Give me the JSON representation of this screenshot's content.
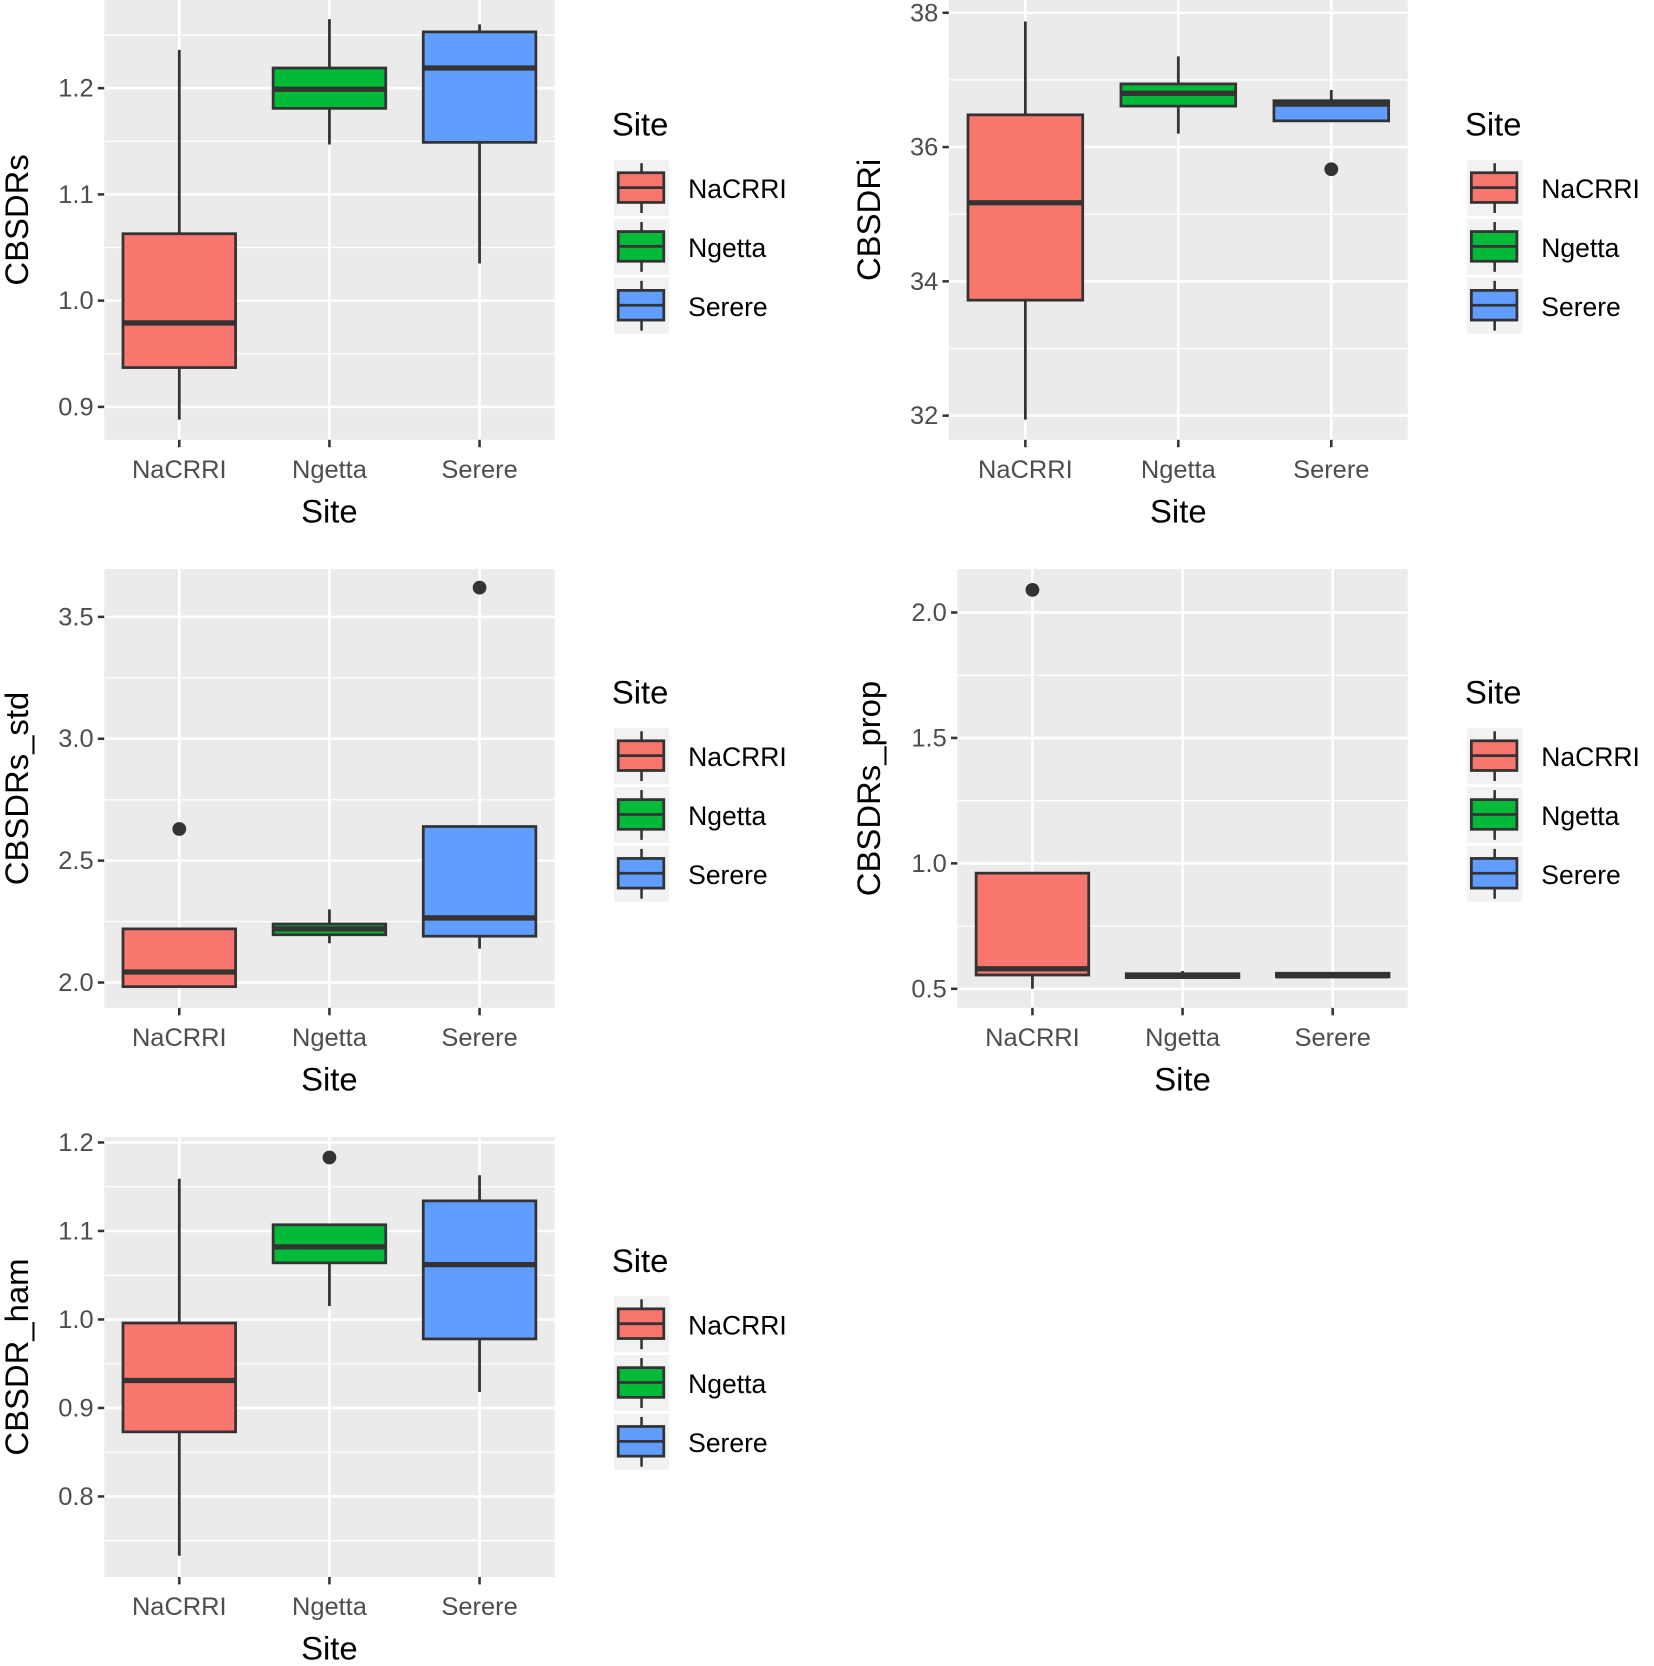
{
  "colors": {
    "NaCRRI": "#F8766D",
    "Ngetta": "#00BA38",
    "Serere": "#619CFF",
    "panel_bg": "#EBEBEB",
    "box_line": "#333333"
  },
  "chart_data": [
    {
      "type": "boxplot",
      "xlabel": "Site",
      "ylabel": "CBSDRs",
      "ylim": [
        0.869,
        1.283
      ],
      "yticks": [
        "0.9",
        "1.0",
        "1.1",
        "1.2"
      ],
      "ytick_values": [
        0.9,
        1.0,
        1.1,
        1.2
      ],
      "categories": [
        "NaCRRI",
        "Ngetta",
        "Serere"
      ],
      "legend": {
        "title": "Site",
        "items": [
          "NaCRRI",
          "Ngetta",
          "Serere"
        ],
        "placement": "right"
      },
      "boxes": [
        {
          "min": 0.888,
          "q1": 0.937,
          "median": 0.979,
          "q3": 1.063,
          "max": 1.236,
          "outliers": []
        },
        {
          "min": 1.147,
          "q1": 1.181,
          "median": 1.199,
          "q3": 1.219,
          "max": 1.265,
          "outliers": []
        },
        {
          "min": 1.035,
          "q1": 1.149,
          "median": 1.219,
          "q3": 1.253,
          "max": 1.26,
          "outliers": []
        }
      ]
    },
    {
      "type": "boxplot",
      "xlabel": "Site",
      "ylabel": "CBSDRi",
      "ylim": [
        31.64,
        38.19
      ],
      "yticks": [
        "32",
        "34",
        "36",
        "38"
      ],
      "ytick_values": [
        32,
        34,
        36,
        38
      ],
      "categories": [
        "NaCRRI",
        "Ngetta",
        "Serere"
      ],
      "legend": {
        "title": "Site",
        "items": [
          "NaCRRI",
          "Ngetta",
          "Serere"
        ],
        "placement": "right"
      },
      "boxes": [
        {
          "min": 31.94,
          "q1": 33.72,
          "median": 35.17,
          "q3": 36.48,
          "max": 37.87,
          "outliers": []
        },
        {
          "min": 36.2,
          "q1": 36.61,
          "median": 36.8,
          "q3": 36.94,
          "max": 37.35,
          "outliers": []
        },
        {
          "min": 36.39,
          "q1": 36.39,
          "median": 36.64,
          "q3": 36.69,
          "max": 36.85,
          "outliers": [
            35.67
          ]
        }
      ]
    },
    {
      "type": "boxplot",
      "xlabel": "Site",
      "ylabel": "CBSDRs_std",
      "ylim": [
        1.896,
        3.696
      ],
      "yticks": [
        "2.0",
        "2.5",
        "3.0",
        "3.5"
      ],
      "ytick_values": [
        2.0,
        2.5,
        3.0,
        3.5
      ],
      "categories": [
        "NaCRRI",
        "Ngetta",
        "Serere"
      ],
      "legend": {
        "title": "Site",
        "items": [
          "NaCRRI",
          "Ngetta",
          "Serere"
        ],
        "placement": "right"
      },
      "boxes": [
        {
          "min": 1.983,
          "q1": 1.983,
          "median": 2.043,
          "q3": 2.22,
          "max": 2.22,
          "outliers": [
            2.63
          ]
        },
        {
          "min": 2.161,
          "q1": 2.196,
          "median": 2.22,
          "q3": 2.24,
          "max": 2.3,
          "outliers": []
        },
        {
          "min": 2.139,
          "q1": 2.19,
          "median": 2.265,
          "q3": 2.64,
          "max": 2.64,
          "outliers": [
            3.62
          ]
        }
      ]
    },
    {
      "type": "boxplot",
      "xlabel": "Site",
      "ylabel": "CBSDRs_prop",
      "ylim": [
        0.424,
        2.173
      ],
      "yticks": [
        "0.5",
        "1.0",
        "1.5",
        "2.0"
      ],
      "ytick_values": [
        0.5,
        1.0,
        1.5,
        2.0
      ],
      "categories": [
        "NaCRRI",
        "Ngetta",
        "Serere"
      ],
      "legend": {
        "title": "Site",
        "items": [
          "NaCRRI",
          "Ngetta",
          "Serere"
        ],
        "placement": "right"
      },
      "boxes": [
        {
          "min": 0.5,
          "q1": 0.555,
          "median": 0.58,
          "q3": 0.961,
          "max": 0.961,
          "outliers": [
            2.09
          ]
        },
        {
          "min": 0.54,
          "q1": 0.545,
          "median": 0.55,
          "q3": 0.56,
          "max": 0.571,
          "outliers": []
        },
        {
          "min": 0.545,
          "q1": 0.548,
          "median": 0.552,
          "q3": 0.562,
          "max": 0.562,
          "outliers": []
        }
      ]
    },
    {
      "type": "boxplot",
      "xlabel": "Site",
      "ylabel": "CBSDR_ham",
      "ylim": [
        0.709,
        1.206
      ],
      "yticks": [
        "0.8",
        "0.9",
        "1.0",
        "1.1",
        "1.2"
      ],
      "ytick_values": [
        0.8,
        0.9,
        1.0,
        1.1,
        1.2
      ],
      "categories": [
        "NaCRRI",
        "Ngetta",
        "Serere"
      ],
      "legend": {
        "title": "Site",
        "items": [
          "NaCRRI",
          "Ngetta",
          "Serere"
        ],
        "placement": "right"
      },
      "boxes": [
        {
          "min": 0.733,
          "q1": 0.873,
          "median": 0.931,
          "q3": 0.996,
          "max": 1.159,
          "outliers": []
        },
        {
          "min": 1.015,
          "q1": 1.064,
          "median": 1.082,
          "q3": 1.107,
          "max": 1.107,
          "outliers": [
            1.183
          ]
        },
        {
          "min": 0.918,
          "q1": 0.978,
          "median": 1.062,
          "q3": 1.134,
          "max": 1.163,
          "outliers": []
        }
      ]
    }
  ]
}
